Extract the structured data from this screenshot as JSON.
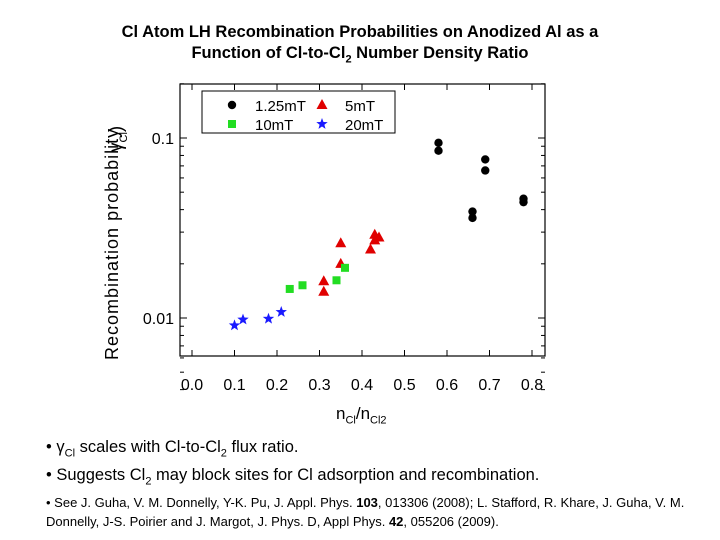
{
  "title": {
    "line1": "Cl Atom LH Recombination Probabilities on Anodized Al as a",
    "line2_main": "Function of Cl-to-Cl",
    "line2_sub": "2",
    "line2_tail": " Number Density Ratio"
  },
  "ylabel": {
    "rotated_text": "Recombination probability",
    "gamma_symbol": "γ",
    "gamma_sub": "Cl",
    "gamma_close": ")"
  },
  "xlabel": {
    "main": "n",
    "sub1": "Cl",
    "slash": "/n",
    "sub2": "Cl2"
  },
  "notes": {
    "bullet1_pre": "• γ",
    "bullet1_sub": "Cl",
    "bullet1_mid": " scales with Cl-to-Cl",
    "bullet1_sub2": "2",
    "bullet1_post": " flux ratio.",
    "bullet2_pre": "• Suggests Cl",
    "bullet2_sub": "2",
    "bullet2_post": " may block sites for Cl adsorption and recombination.",
    "ref_pre": "• See J. Guha, V. M. Donnelly, Y-K. Pu, J. Appl. Phys. ",
    "ref_vol1": "103",
    "ref_mid": ", 013306 (2008); L. Stafford, R. Khare, J. Guha, V. M. Donnelly, J-S. Poirier and J. Margot, J. Phys. D, Appl Phys. ",
    "ref_vol2": "42",
    "ref_post": ", 055206 (2009)."
  },
  "chart_data": {
    "type": "scatter",
    "yscale": "log",
    "xlim": [
      0.0,
      0.85
    ],
    "ylim": [
      0.004,
      0.3
    ],
    "xticks": [
      0.0,
      0.1,
      0.2,
      0.3,
      0.4,
      0.5,
      0.6,
      0.7,
      0.8
    ],
    "xtick_labels": [
      "0.0",
      "0.1",
      "0.2",
      "0.3",
      "0.4",
      "0.5",
      "0.6",
      "0.7",
      "0.8"
    ],
    "yticks_major": [
      0.01,
      0.1
    ],
    "ytick_labels": [
      "0.01",
      "0.1"
    ],
    "grid": false,
    "legend_position": "top-left",
    "series": [
      {
        "name": "1.25mT",
        "marker": "circle",
        "color": "#000000",
        "x": [
          0.58,
          0.58,
          0.66,
          0.66,
          0.69,
          0.69,
          0.78,
          0.78
        ],
        "y": [
          0.094,
          0.085,
          0.039,
          0.036,
          0.076,
          0.066,
          0.046,
          0.044
        ]
      },
      {
        "name": "5mT",
        "marker": "triangle",
        "color": "#e00000",
        "x": [
          0.31,
          0.31,
          0.35,
          0.35,
          0.42,
          0.43,
          0.43,
          0.44
        ],
        "y": [
          0.016,
          0.014,
          0.026,
          0.02,
          0.024,
          0.027,
          0.029,
          0.028
        ]
      },
      {
        "name": "10mT",
        "marker": "square",
        "color": "#22dd22",
        "x": [
          0.23,
          0.26,
          0.34,
          0.36
        ],
        "y": [
          0.0145,
          0.0152,
          0.0162,
          0.019
        ]
      },
      {
        "name": "20mT",
        "marker": "star",
        "color": "#1a1aff",
        "x": [
          0.1,
          0.12,
          0.18,
          0.21
        ],
        "y": [
          0.0091,
          0.0098,
          0.0099,
          0.0108
        ]
      }
    ]
  }
}
